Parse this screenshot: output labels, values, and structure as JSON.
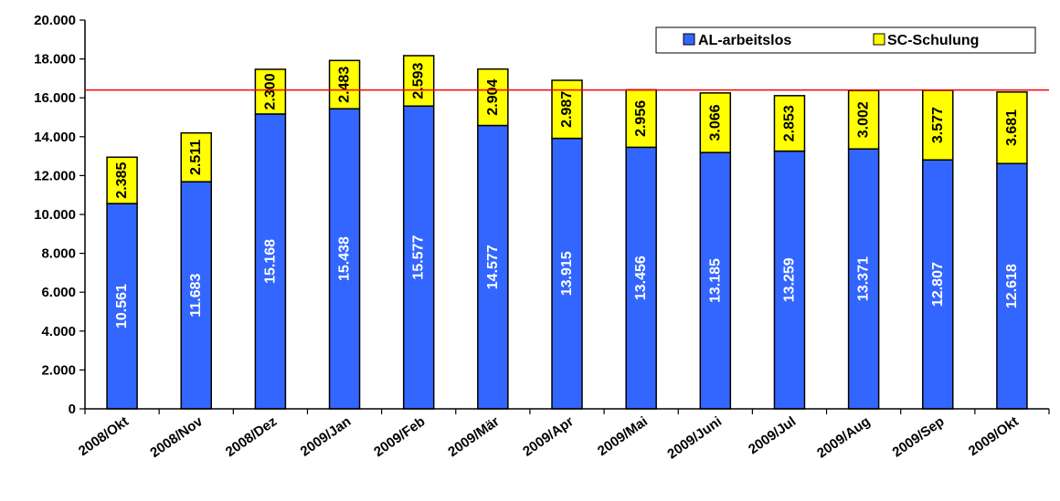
{
  "chart_data": {
    "type": "bar",
    "stacked": true,
    "categories": [
      "2008/Okt",
      "2008/Nov",
      "2008/Dez",
      "2009/Jan",
      "2009/Feb",
      "2009/Mär",
      "2009/Apr",
      "2009/Mai",
      "2009/Juni",
      "2009/Jul",
      "2009/Aug",
      "2009/Sep",
      "2009/Okt"
    ],
    "series": [
      {
        "name": "AL-arbeitslos",
        "color": "#3366ff",
        "values": [
          10561,
          11683,
          15168,
          15438,
          15577,
          14577,
          13915,
          13456,
          13185,
          13259,
          13371,
          12807,
          12618
        ],
        "labels": [
          "10.561",
          "11.683",
          "15.168",
          "15.438",
          "15.577",
          "14.577",
          "13.915",
          "13.456",
          "13.185",
          "13.259",
          "13.371",
          "12.807",
          "12.618"
        ],
        "label_color": "#ffffff"
      },
      {
        "name": "SC-Schulung",
        "color": "#ffff00",
        "values": [
          2385,
          2511,
          2300,
          2483,
          2593,
          2904,
          2987,
          2956,
          3066,
          2853,
          3002,
          3577,
          3681
        ],
        "labels": [
          "2.385",
          "2.511",
          "2.300",
          "2.483",
          "2.593",
          "2.904",
          "2.987",
          "2.956",
          "3.066",
          "2.853",
          "3.002",
          "3.577",
          "3.681"
        ],
        "label_color": "#000000"
      }
    ],
    "ylim": [
      0,
      20000
    ],
    "yticks": [
      0,
      2000,
      4000,
      6000,
      8000,
      10000,
      12000,
      14000,
      16000,
      18000,
      20000
    ],
    "ytick_labels": [
      "0",
      "2.000",
      "4.000",
      "6.000",
      "8.000",
      "10.000",
      "12.000",
      "14.000",
      "16.000",
      "18.000",
      "20.000"
    ],
    "reference_line": {
      "value": 16400,
      "color": "#ff0000"
    },
    "legend_position": "top-right",
    "grid": false,
    "title": "",
    "xlabel": "",
    "ylabel": ""
  }
}
